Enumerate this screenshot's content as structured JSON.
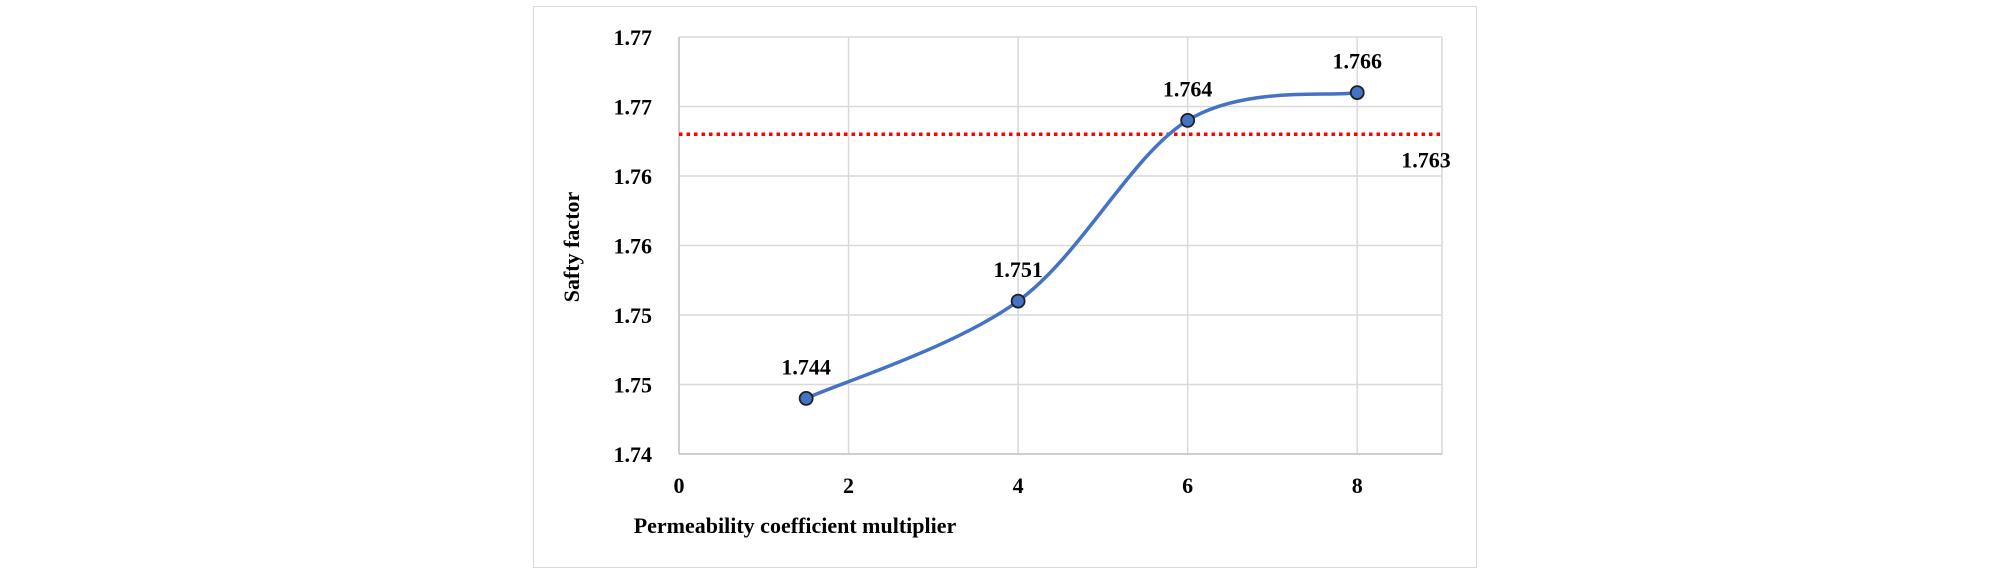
{
  "chart_data": {
    "type": "line",
    "xlabel": "Permeability coefficient multiplier",
    "ylabel": "Safty factor",
    "x_ticks": [
      "0",
      "2",
      "4",
      "6",
      "8"
    ],
    "y_ticks": [
      "1.74",
      "1.75",
      "1.75",
      "1.76",
      "1.76",
      "1.77",
      "1.77"
    ],
    "xlim": [
      0,
      9
    ],
    "ylim": [
      1.74,
      1.77
    ],
    "grid": true,
    "series": [
      {
        "x": [
          1.5,
          4,
          6,
          8
        ],
        "y": [
          1.744,
          1.751,
          1.764,
          1.766
        ],
        "labels": [
          "1.744",
          "1.751",
          "1.764",
          "1.766"
        ],
        "smooth": true
      }
    ],
    "reference_line": {
      "y": 1.763,
      "label": "1.763",
      "style": "dotted"
    },
    "colors": {
      "series": "#4472c4",
      "marker_fill": "#4472c4",
      "marker_stroke": "#1f1f1f",
      "reference_line": "#ff0000",
      "grid": "#d9d9d9",
      "axis": "#bfbfbf"
    }
  }
}
